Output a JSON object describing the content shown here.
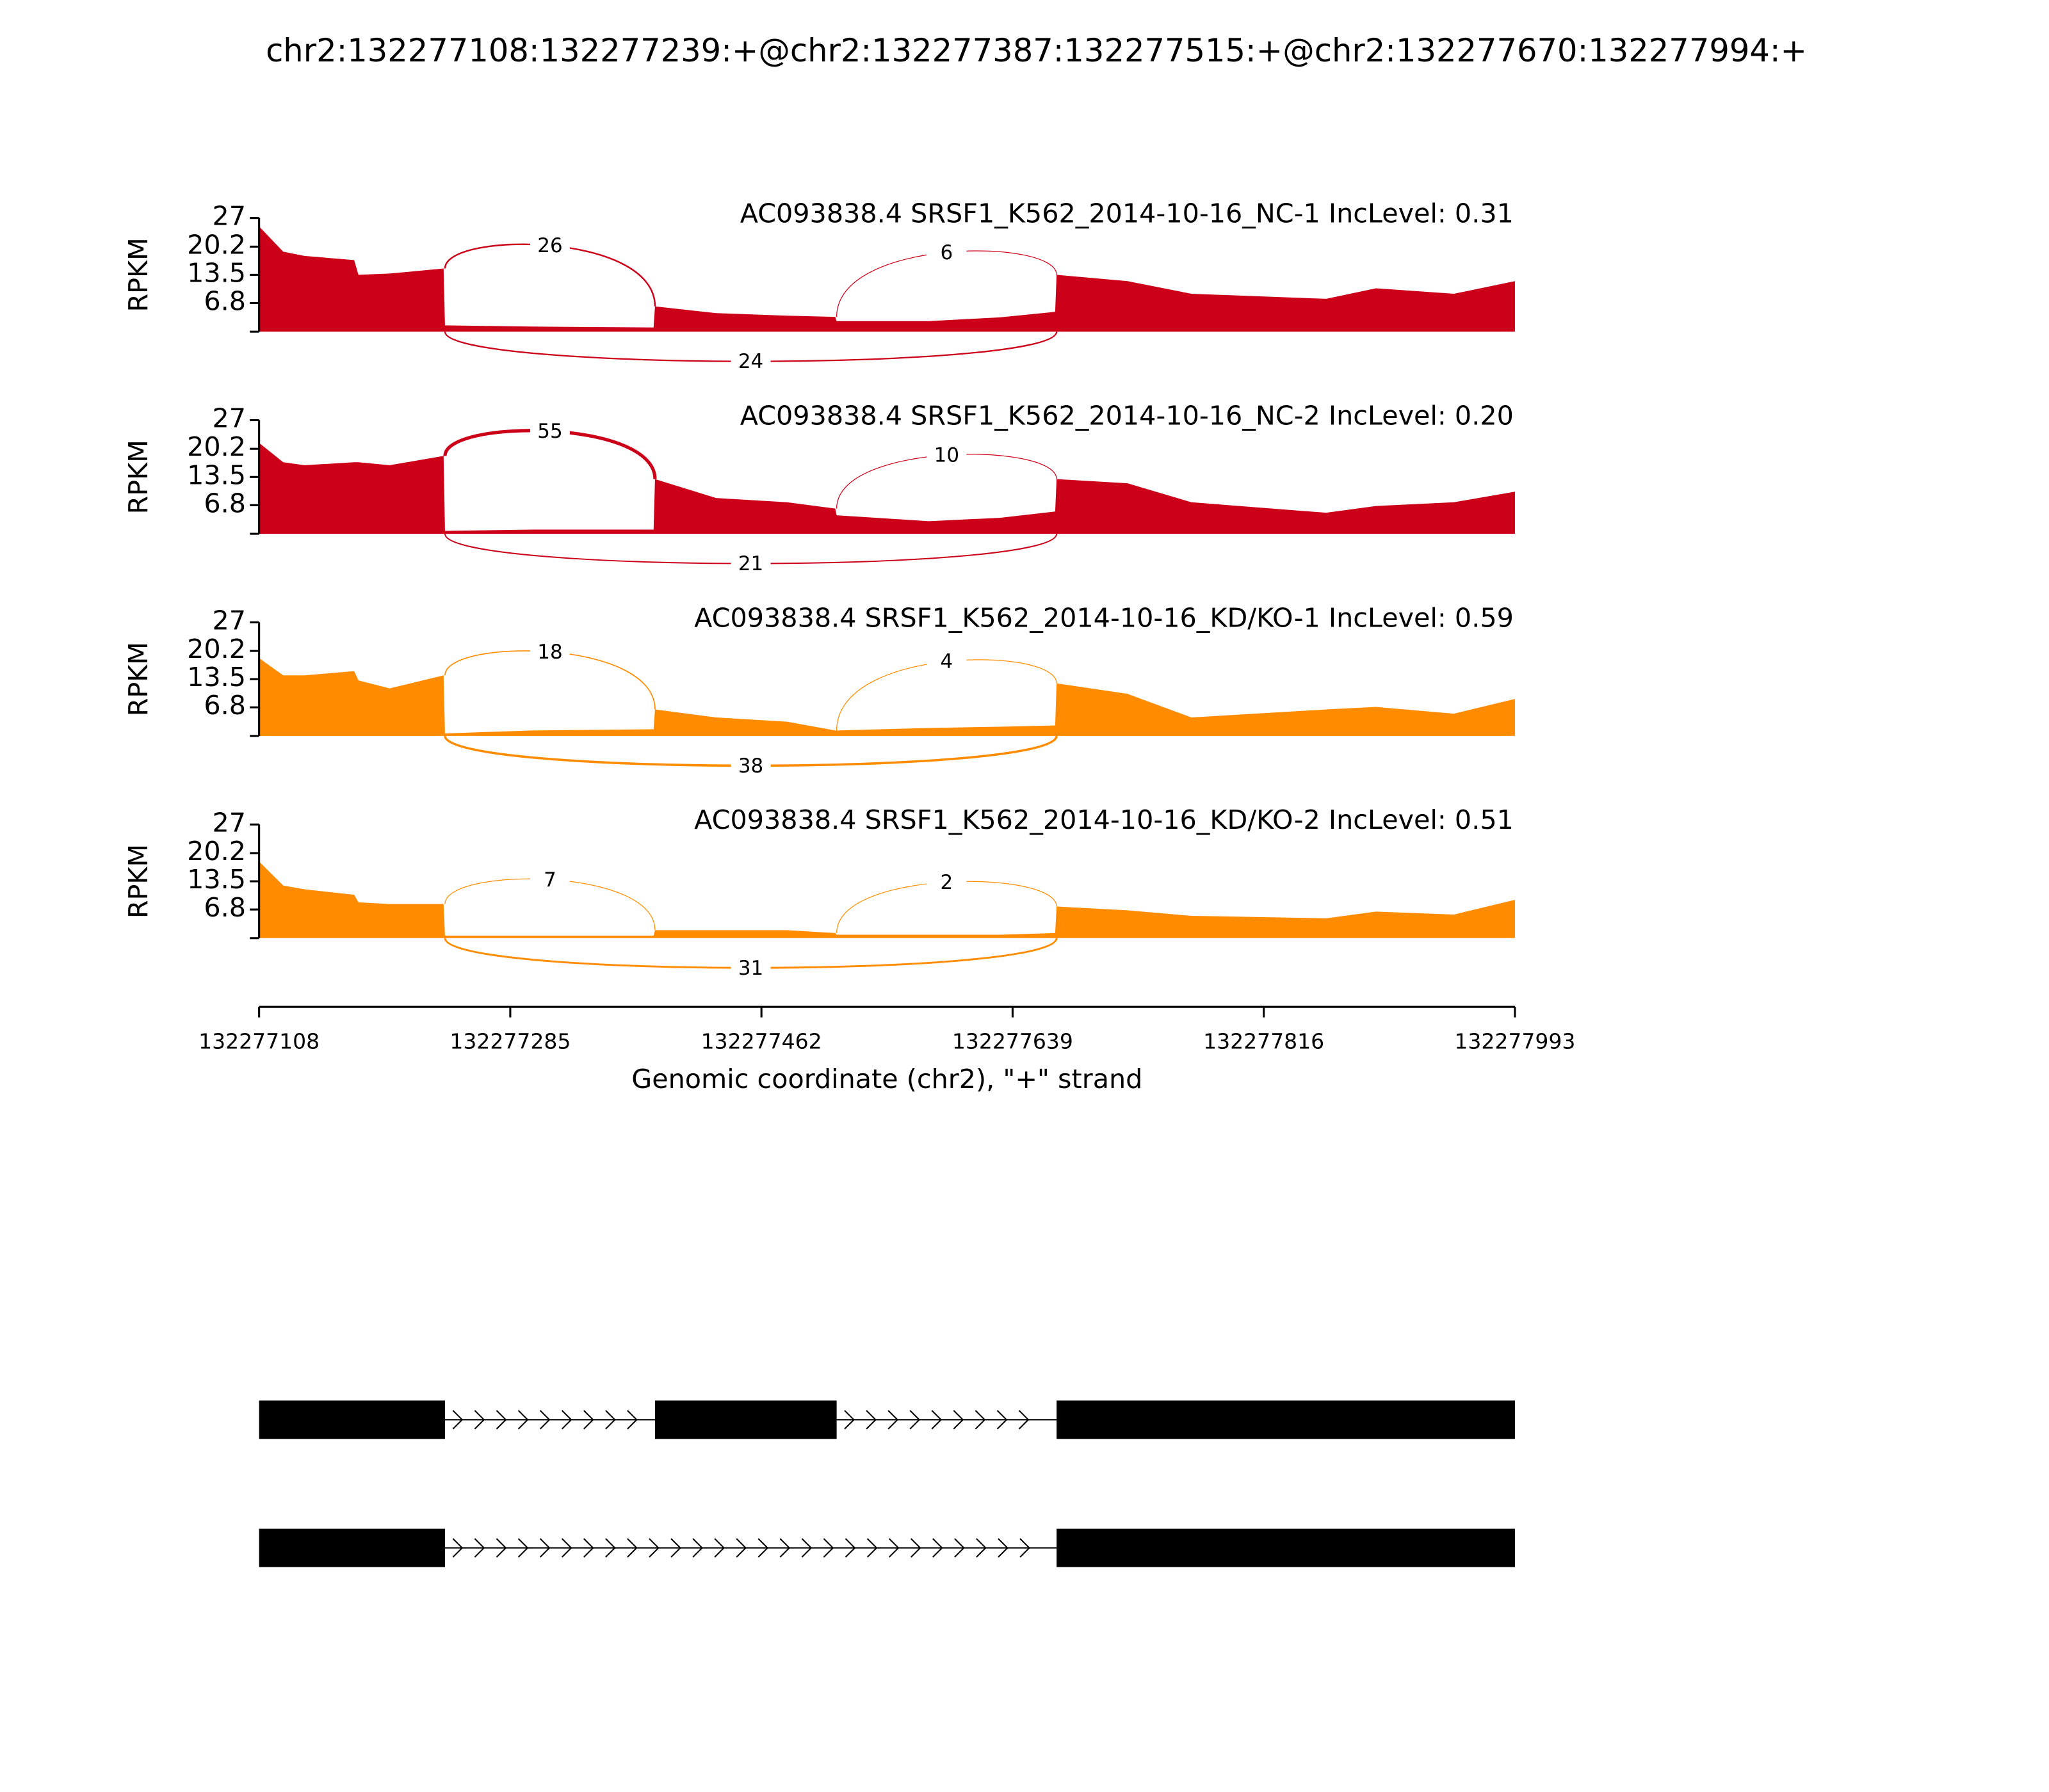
{
  "title": "chr2:132277108:132277239:+@chr2:132277387:132277515:+@chr2:132277670:132277994:+",
  "x_axis": {
    "label": "Genomic coordinate (chr2), \"+\" strand",
    "xlim": [
      132277108,
      132277993
    ],
    "xticks": [
      132277108,
      132277285,
      132277462,
      132277639,
      132277816,
      132277993
    ]
  },
  "chart_data": [
    {
      "type": "area",
      "label": "AC093838.4 SRSF1_K562_2014-10-16_NC-1 IncLevel: 0.31",
      "ylabel": "RPKM",
      "color": "#cc0018",
      "ylim": [
        0,
        27
      ],
      "yticks": [
        6.8,
        13.5,
        20.2,
        27
      ],
      "x": [
        132277108,
        132277125,
        132277140,
        132277175,
        132277178,
        132277200,
        132277238,
        132277239,
        132277300,
        132277386,
        132277387,
        132277430,
        132277480,
        132277514,
        132277515,
        132277580,
        132277630,
        132277669,
        132277670,
        132277720,
        132277765,
        132277860,
        132277895,
        132277950,
        132277993
      ],
      "values": [
        25,
        19,
        18,
        17,
        13.5,
        13.8,
        15,
        1.5,
        1.2,
        1,
        6,
        4.4,
        3.8,
        3.5,
        2.5,
        2.5,
        3.4,
        4.7,
        13.5,
        12,
        9,
        7.8,
        10.3,
        9,
        12
      ],
      "junctions": [
        {
          "start": 132277239,
          "end": 132277387,
          "count": 26
        },
        {
          "start": 132277515,
          "end": 132277670,
          "count": 6
        },
        {
          "start": 132277239,
          "end": 132277670,
          "count": 24
        }
      ]
    },
    {
      "type": "area",
      "label": "AC093838.4 SRSF1_K562_2014-10-16_NC-2 IncLevel: 0.20",
      "ylabel": "RPKM",
      "color": "#cc0018",
      "ylim": [
        0,
        27
      ],
      "yticks": [
        6.8,
        13.5,
        20.2,
        27
      ],
      "x": [
        132277108,
        132277125,
        132277140,
        132277175,
        132277178,
        132277200,
        132277238,
        132277239,
        132277300,
        132277386,
        132277387,
        132277430,
        132277480,
        132277514,
        132277515,
        132277580,
        132277630,
        132277669,
        132277670,
        132277720,
        132277765,
        132277860,
        132277895,
        132277950,
        132277993
      ],
      "values": [
        21.6,
        17,
        16.3,
        17,
        17,
        16.3,
        18.5,
        0.7,
        1,
        1,
        13,
        8.5,
        7.5,
        6,
        4.4,
        3,
        3.8,
        5.3,
        13,
        12,
        7.5,
        5,
        6.6,
        7.5,
        10
      ],
      "junctions": [
        {
          "start": 132277239,
          "end": 132277387,
          "count": 55
        },
        {
          "start": 132277515,
          "end": 132277670,
          "count": 10
        },
        {
          "start": 132277239,
          "end": 132277670,
          "count": 21
        }
      ]
    },
    {
      "type": "area",
      "label": "AC093838.4 SRSF1_K562_2014-10-16_KD/KO-1 IncLevel: 0.59",
      "ylabel": "RPKM",
      "color": "#ff8c00",
      "ylim": [
        0,
        27
      ],
      "yticks": [
        6.8,
        13.5,
        20.2,
        27
      ],
      "x": [
        132277108,
        132277125,
        132277140,
        132277175,
        132277178,
        132277200,
        132277238,
        132277239,
        132277300,
        132277386,
        132277387,
        132277430,
        132277480,
        132277514,
        132277515,
        132277580,
        132277630,
        132277669,
        132277670,
        132277720,
        132277765,
        132277860,
        132277895,
        132277950,
        132277993
      ],
      "values": [
        18.5,
        14.4,
        14.4,
        15.4,
        13.2,
        11.3,
        14.4,
        0.6,
        1.3,
        1.6,
        6.3,
        4.4,
        3.4,
        1.3,
        1.3,
        1.9,
        2.2,
        2.5,
        12.5,
        10,
        4.4,
        6.3,
        6.9,
        5.3,
        8.8
      ],
      "junctions": [
        {
          "start": 132277239,
          "end": 132277387,
          "count": 18
        },
        {
          "start": 132277515,
          "end": 132277670,
          "count": 4
        },
        {
          "start": 132277239,
          "end": 132277670,
          "count": 38
        }
      ]
    },
    {
      "type": "area",
      "label": "AC093838.4 SRSF1_K562_2014-10-16_KD/KO-2 IncLevel: 0.51",
      "ylabel": "RPKM",
      "color": "#ff8c00",
      "ylim": [
        0,
        27
      ],
      "yticks": [
        6.8,
        13.5,
        20.2,
        27
      ],
      "x": [
        132277108,
        132277125,
        132277140,
        132277175,
        132277178,
        132277200,
        132277238,
        132277239,
        132277300,
        132277386,
        132277387,
        132277430,
        132277480,
        132277514,
        132277515,
        132277580,
        132277630,
        132277669,
        132277670,
        132277720,
        132277765,
        132277860,
        132277895,
        132277950,
        132277993
      ],
      "values": [
        18.2,
        12.5,
        11.6,
        10.3,
        8.5,
        8.1,
        8.1,
        0.6,
        0.6,
        0.6,
        1.9,
        1.9,
        1.9,
        1.2,
        0.8,
        0.8,
        0.8,
        1.2,
        7.5,
        6.6,
        5.3,
        4.7,
        6.3,
        5.6,
        9.1
      ],
      "junctions": [
        {
          "start": 132277239,
          "end": 132277387,
          "count": 7
        },
        {
          "start": 132277515,
          "end": 132277670,
          "count": 2
        },
        {
          "start": 132277239,
          "end": 132277670,
          "count": 31
        }
      ]
    }
  ],
  "gene_models": [
    {
      "exons": [
        [
          132277108,
          132277239
        ],
        [
          132277387,
          132277515
        ],
        [
          132277670,
          132277993
        ]
      ]
    },
    {
      "exons": [
        [
          132277108,
          132277239
        ],
        [
          132277670,
          132277993
        ]
      ]
    }
  ]
}
